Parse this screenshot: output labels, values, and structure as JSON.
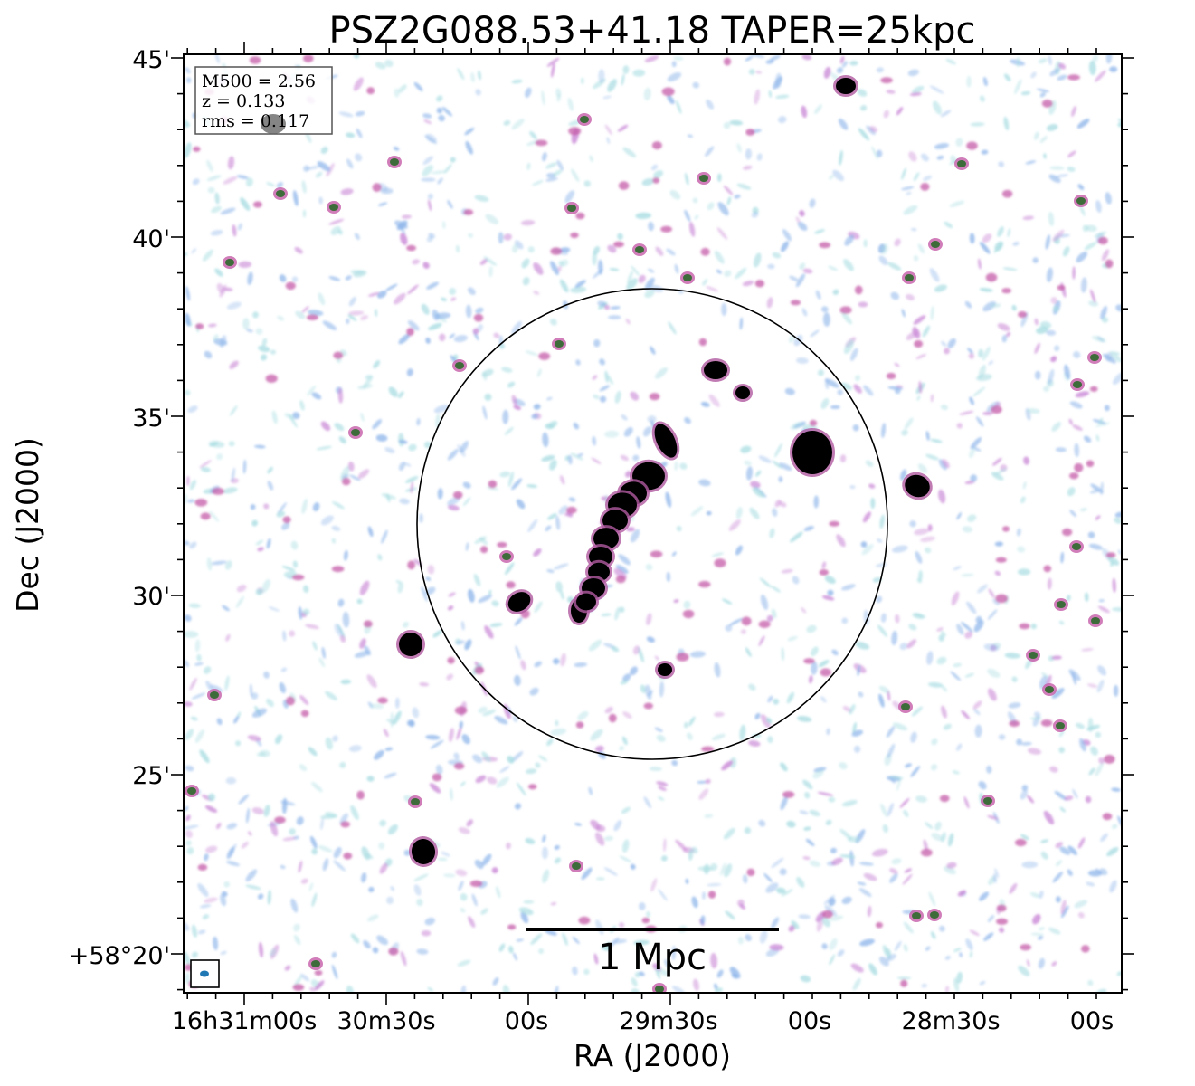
{
  "chart_data": {
    "type": "image",
    "title": "PSZ2G088.53+41.18 TAPER=25kpc",
    "xlabel": "RA (J2000)",
    "ylabel": "Dec (J2000)",
    "x_tick_labels": [
      "16h31m00s",
      "30m30s",
      "00s",
      "29m30s",
      "00s",
      "28m30s",
      "00s"
    ],
    "y_tick_labels": [
      "45'",
      "40'",
      "35'",
      "30'",
      "25'",
      "+58°20'"
    ],
    "info_box": {
      "m500": "M500 = 2.56",
      "z": "z = 0.133",
      "rms": "rms = 0.117"
    },
    "scale_bar_label": "1 Mpc",
    "circle": "R500",
    "colors": {
      "noise_blue": "#8fb6ea",
      "noise_cyan": "#a9dde2",
      "noise_magenta": "#c987d6",
      "source_core": "#000000",
      "source_rim": "#3d6b3a",
      "beam": "#1f77b4"
    }
  }
}
